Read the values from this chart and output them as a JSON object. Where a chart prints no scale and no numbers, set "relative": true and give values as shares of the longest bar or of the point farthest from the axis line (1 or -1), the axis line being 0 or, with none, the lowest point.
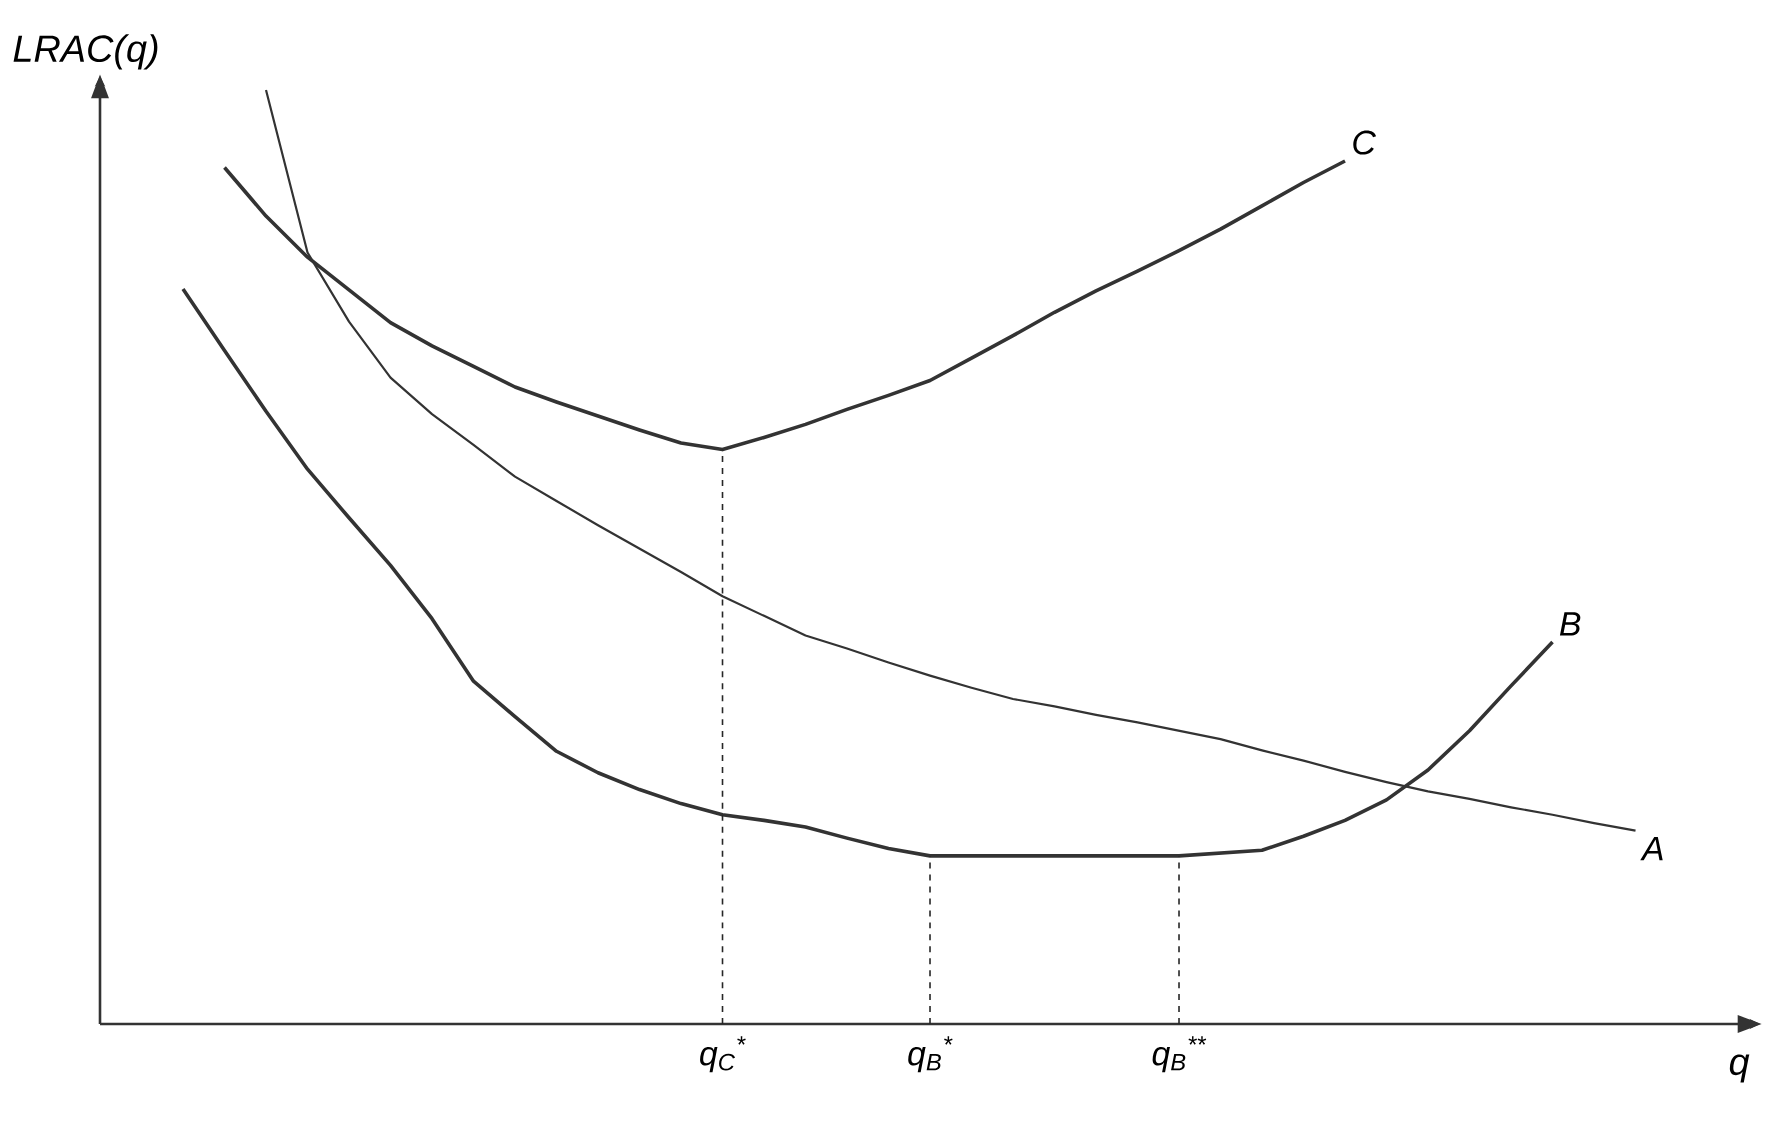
{
  "chart_data": {
    "type": "line",
    "relative": true,
    "xlabel": "q",
    "ylabel": "LRAC(q)",
    "legend": false,
    "marker": "none",
    "line_style": "solid",
    "categories": [
      null,
      null,
      null,
      null,
      null,
      null,
      null,
      null,
      null,
      null,
      null,
      null,
      null,
      null,
      null,
      "q$_{C}$$^{*}$",
      null,
      null,
      null,
      null,
      "q$_{B}$$^{*}$",
      null,
      null,
      null,
      null,
      null,
      "q$_{B}$$^{**}$",
      null,
      null,
      null,
      null,
      null,
      null,
      null,
      null,
      null,
      null,
      null
    ],
    "series": [
      {
        "name": "C",
        "color": "#333333",
        "values": [
          null,
          null,
          null,
          0.917,
          0.865,
          0.821,
          0.786,
          0.751,
          0.726,
          0.704,
          0.682,
          0.666,
          0.651,
          0.636,
          0.622,
          0.615,
          0.628,
          0.642,
          0.658,
          0.673,
          0.689,
          0.713,
          0.737,
          0.762,
          0.785,
          0.806,
          0.828,
          0.851,
          0.876,
          0.901,
          0.924,
          null,
          null,
          null,
          null,
          null,
          null,
          null
        ]
      },
      {
        "name": "A",
        "color": "#333333",
        "values": [
          null,
          null,
          null,
          null,
          1.0,
          0.826,
          0.752,
          0.692,
          0.653,
          0.62,
          0.586,
          0.56,
          0.534,
          0.509,
          0.484,
          0.458,
          0.437,
          0.416,
          0.402,
          0.387,
          0.373,
          0.36,
          0.348,
          0.34,
          0.331,
          0.323,
          0.314,
          0.305,
          0.293,
          0.282,
          0.27,
          0.259,
          0.249,
          0.241,
          0.232,
          0.224,
          0.215,
          0.207
        ]
      },
      {
        "name": "B",
        "color": "#333333",
        "values": [
          null,
          null,
          0.787,
          0.721,
          0.656,
          0.594,
          0.542,
          0.491,
          0.434,
          0.367,
          0.329,
          0.292,
          0.269,
          0.251,
          0.236,
          0.224,
          0.218,
          0.211,
          0.199,
          0.188,
          0.18,
          0.18,
          0.18,
          0.18,
          0.18,
          0.18,
          0.18,
          0.183,
          0.186,
          0.201,
          0.218,
          0.24,
          0.272,
          0.314,
          0.362,
          0.409,
          null,
          null
        ]
      }
    ],
    "ref_lines": [
      {
        "axis": "x",
        "value": "q$_{C}$$^{*}$",
        "line_style": "dashed"
      },
      {
        "axis": "x",
        "value": "q$_{B}$$^{*}$",
        "line_style": "dashed"
      },
      {
        "axis": "x",
        "value": "q$_{B}$$^{**}$",
        "line_style": "dashed"
      }
    ]
  }
}
